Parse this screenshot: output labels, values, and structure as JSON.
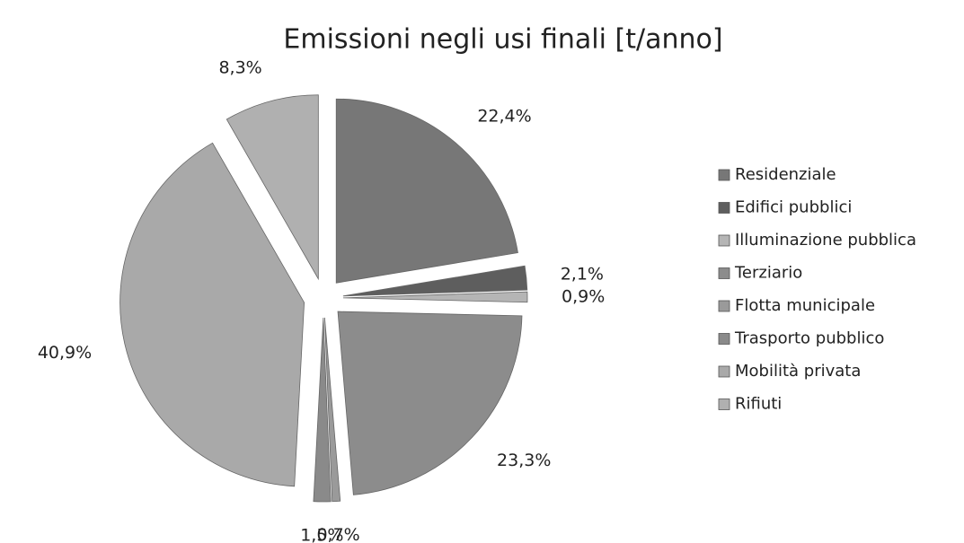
{
  "chart_data": {
    "type": "pie",
    "title": "Emissioni negli usi finali [t/anno]",
    "categories": [
      "Residenziale",
      "Edifici pubblici",
      "Illuminazione pubblica",
      "Terziario",
      "Flotta municipale",
      "Trasporto pubblico",
      "Mobilità privata",
      "Rifiuti"
    ],
    "values": [
      22.4,
      2.1,
      0.9,
      23.3,
      0.7,
      1.5,
      40.9,
      8.3
    ],
    "value_labels": [
      "22,4%",
      "2,1%",
      "0,9%",
      "23,3%",
      "0,7%",
      "1,5%",
      "40,9%",
      "8,3%"
    ],
    "colors": [
      "#777777",
      "#5e5e5e",
      "#b5b5b5",
      "#8c8c8c",
      "#9a9a9a",
      "#8a8a8a",
      "#a9a9a9",
      "#b0b0b0"
    ],
    "legend": "right"
  }
}
